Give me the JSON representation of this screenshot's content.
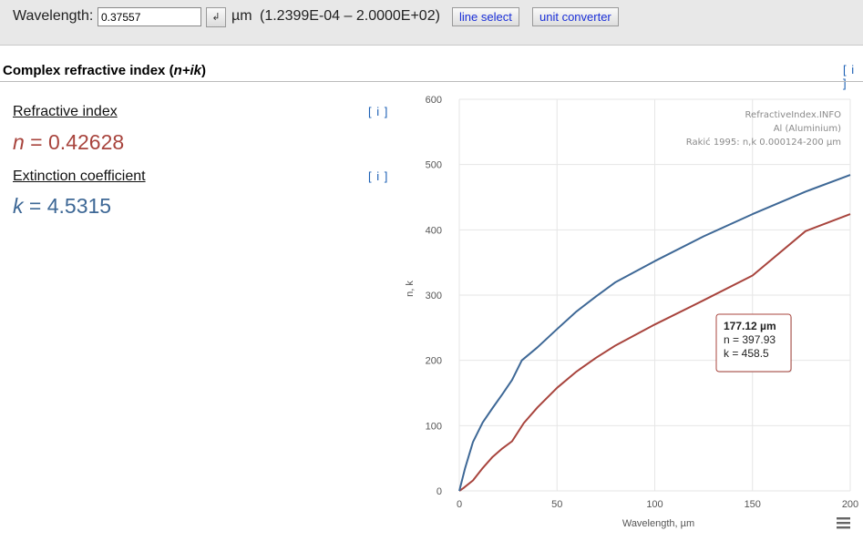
{
  "toolbar": {
    "wavelength_label": "Wavelength:",
    "wavelength_value": "0.37557",
    "enter_glyph": "↲",
    "unit": "µm",
    "range": "(1.2399E-04 – 2.0000E+02)",
    "line_select_label": "line select",
    "unit_converter_label": "unit converter"
  },
  "section": {
    "title_prefix": "Complex refractive index (",
    "title_formula": "n+ik",
    "title_suffix": ")",
    "info_label": "[ i ]"
  },
  "properties": {
    "refractive": {
      "label": "Refractive index",
      "info_label": "[ i ]",
      "symbol": "n",
      "equals": " = ",
      "value": "0.42628"
    },
    "extinction": {
      "label": "Extinction coefficient",
      "info_label": "[ i ]",
      "symbol": "k",
      "equals": " = ",
      "value": "4.5315"
    }
  },
  "chart_data": {
    "type": "line",
    "title": "",
    "xlabel": "Wavelength, µm",
    "ylabel": "n, k",
    "xlim": [
      0,
      200
    ],
    "ylim": [
      0,
      600
    ],
    "x_ticks": [
      0,
      50,
      100,
      150,
      200
    ],
    "y_ticks": [
      0,
      100,
      200,
      300,
      400,
      500,
      600
    ],
    "grid": true,
    "credits": [
      "RefractiveIndex.INFO",
      "Al (Aluminium)",
      "Rakić 1995: n,k 0.000124-200 µm"
    ],
    "series": [
      {
        "name": "n",
        "color": "#a8443d",
        "x": [
          0,
          2,
          7,
          12,
          17,
          22,
          27,
          33,
          40,
          50,
          60,
          70,
          80,
          100,
          125,
          150,
          177.12,
          200
        ],
        "y": [
          0,
          4,
          16,
          35,
          52,
          65,
          76,
          104,
          128,
          158,
          183,
          204,
          223,
          255,
          292,
          330,
          397.93,
          424
        ]
      },
      {
        "name": "k",
        "color": "#3e6896",
        "x": [
          0,
          3,
          7,
          12,
          17,
          22,
          27,
          32,
          40,
          50,
          60,
          70,
          80,
          100,
          125,
          150,
          177.12,
          200
        ],
        "y": [
          0,
          35,
          75,
          105,
          127,
          148,
          170,
          200,
          220,
          248,
          275,
          298,
          320,
          352,
          390,
          424,
          458.5,
          484
        ]
      }
    ],
    "tooltip": {
      "header": "177.12 µm",
      "n_line": "n = 397.93",
      "k_line": "k = 458.5"
    },
    "menu_icon": "hamburger-icon"
  }
}
